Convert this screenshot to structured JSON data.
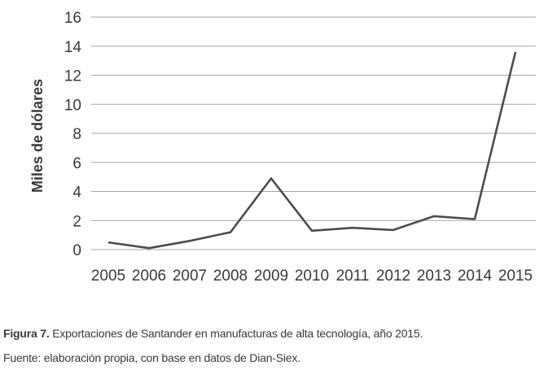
{
  "chart_data": {
    "type": "line",
    "title": "",
    "xlabel": "",
    "ylabel": "Miles de dólares",
    "categories": [
      "2005",
      "2006",
      "2007",
      "2008",
      "2009",
      "2010",
      "2011",
      "2012",
      "2013",
      "2014",
      "2015"
    ],
    "series": [
      {
        "name": "",
        "values": [
          0.5,
          0.1,
          0.6,
          1.2,
          4.9,
          1.3,
          1.5,
          1.35,
          2.3,
          2.1,
          13.6
        ]
      }
    ],
    "ylim": [
      0,
      16
    ],
    "yticks": [
      "0",
      "2",
      "4",
      "6",
      "8",
      "10",
      "12",
      "14",
      "16"
    ],
    "grid": true,
    "legend": "none",
    "line_color": "#4d4d4d",
    "grid_color": "#a6a6a6"
  },
  "caption": {
    "figure_label": "Figura 7.",
    "figure_text": " Exportaciones de Santander en manufacturas de alta tecnología, año 2015.",
    "source": "Fuente: elaboración propia, con base en datos de Dian-Siex."
  }
}
